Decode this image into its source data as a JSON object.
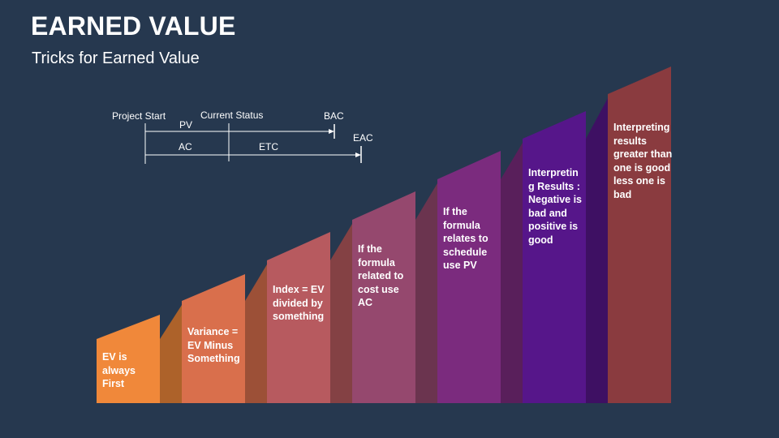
{
  "header": {
    "title": "EARNED VALUE",
    "subtitle": "Tricks for Earned Value"
  },
  "timeline": {
    "project_start": "Project Start",
    "current_status": "Current Status",
    "pv": "PV",
    "bac": "BAC",
    "ac": "AC",
    "etc": "ETC",
    "eac": "EAC"
  },
  "steps": [
    {
      "text": "EV is\nalways\nFirst",
      "color": "#f0883a"
    },
    {
      "text": "Variance =\nEV Minus\nSomething",
      "color": "#d96f4c"
    },
    {
      "text": "Index = EV\ndivided by\nsomething",
      "color": "#b75a5f"
    },
    {
      "text": "If the\nformula\nrelated to\ncost use\nAC",
      "color": "#95486e"
    },
    {
      "text": "If the\nformula\nrelates to\nschedule\nuse PV",
      "color": "#7b2b7e"
    },
    {
      "text": "Interpretin\ng Results :\nNegative is\nbad and\npositive is\ngood",
      "color": "#56168a"
    },
    {
      "text": "Interpreting\nresults\ngreater than\none is good\nless one is\nbad",
      "color": "#8a3b3f"
    }
  ]
}
